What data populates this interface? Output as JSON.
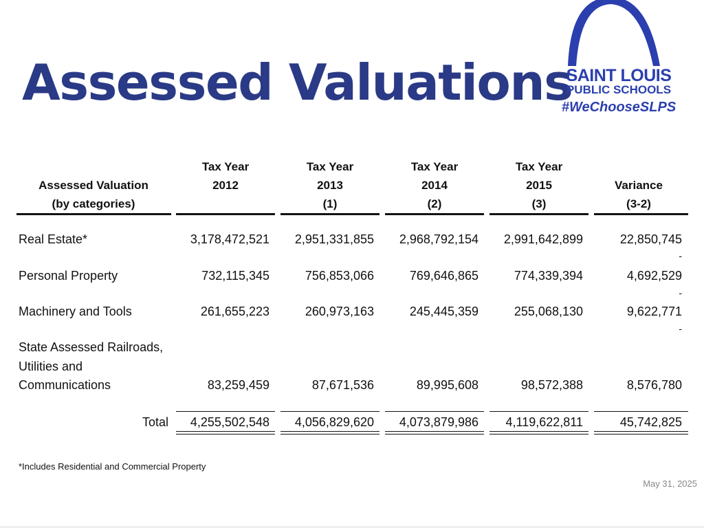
{
  "title": "Assessed Valuations",
  "logo": {
    "line1": "SAINT LOUIS",
    "line2": "PUBLIC SCHOOLS",
    "line3": "#WeChooseSLPS",
    "color": "#2b3fae"
  },
  "table": {
    "headers": {
      "category": [
        "Assessed Valuation",
        "(by categories)"
      ],
      "col2012": [
        "Tax Year",
        "2012",
        ""
      ],
      "col2013": [
        "Tax Year",
        "2013",
        "(1)"
      ],
      "col2014": [
        "Tax Year",
        "2014",
        "(2)"
      ],
      "col2015": [
        "Tax Year",
        "2015",
        "(3)"
      ],
      "variance": [
        "Variance",
        "(3-2)"
      ]
    },
    "rows": [
      {
        "label": [
          "Real Estate*"
        ],
        "values": [
          "3,178,472,521",
          "2,951,331,855",
          "2,968,792,154",
          "2,991,642,899",
          "22,850,745"
        ],
        "variance_dash": ""
      },
      {
        "label": [
          "Personal Property"
        ],
        "values": [
          "732,115,345",
          "756,853,066",
          "769,646,865",
          "774,339,394",
          "4,692,529"
        ],
        "variance_dash": "-"
      },
      {
        "label": [
          "Machinery and Tools"
        ],
        "values": [
          "261,655,223",
          "260,973,163",
          "245,445,359",
          "255,068,130",
          "9,622,771"
        ],
        "variance_dash": "-"
      },
      {
        "label": [
          "State Assessed Railroads,",
          "Utilities and",
          "Communications"
        ],
        "values": [
          "83,259,459",
          "87,671,536",
          "89,995,608",
          "98,572,388",
          "8,576,780"
        ],
        "variance_dash": "-"
      }
    ],
    "total": {
      "label": "Total",
      "values": [
        "4,255,502,548",
        "4,056,829,620",
        "4,073,879,986",
        "4,119,622,811",
        "45,742,825"
      ]
    }
  },
  "footnote": "*Includes Residential and Commercial Property",
  "date": "May 31, 2025",
  "colors": {
    "title": "#2a3a86",
    "text": "#111111",
    "date": "#888888"
  }
}
